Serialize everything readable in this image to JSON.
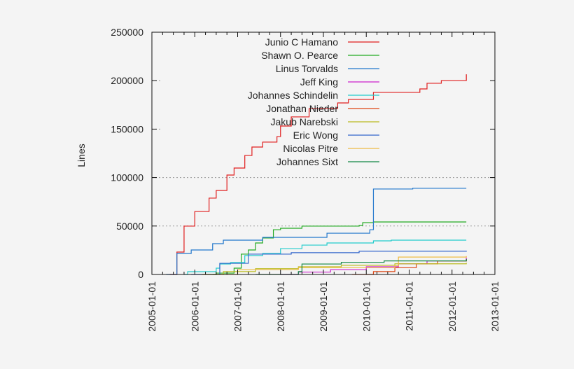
{
  "chart_data": {
    "type": "line",
    "title": "",
    "xlabel": "",
    "ylabel": "Lines",
    "xlim": [
      "2005-01-01",
      "2013-01-01"
    ],
    "ylim": [
      0,
      250000
    ],
    "x_ticks": [
      "2005-01-01",
      "2006-01-01",
      "2007-01-01",
      "2008-01-01",
      "2009-01-01",
      "2010-01-01",
      "2011-01-01",
      "2012-01-01",
      "2013-01-01"
    ],
    "y_ticks": [
      0,
      50000,
      100000,
      150000,
      200000,
      250000
    ],
    "y_tick_labels": [
      "0",
      "50000",
      "100000",
      "150000",
      "200000",
      "250000"
    ],
    "grid": "horizontal dotted",
    "legend_placement": "top-center",
    "line_style": "step",
    "series": [
      {
        "name": "Junio C Hamano",
        "color": "#e01e1e",
        "points": [
          [
            "2005-06",
            0
          ],
          [
            "2005-08",
            23100
          ],
          [
            "2005-10",
            49900
          ],
          [
            "2006-01",
            65000
          ],
          [
            "2006-05",
            78800
          ],
          [
            "2006-07",
            86700
          ],
          [
            "2006-10",
            102600
          ],
          [
            "2006-12",
            109800
          ],
          [
            "2007-03",
            122800
          ],
          [
            "2007-05",
            131500
          ],
          [
            "2007-08",
            136600
          ],
          [
            "2007-12",
            142300
          ],
          [
            "2008-01",
            153200
          ],
          [
            "2008-04",
            162600
          ],
          [
            "2008-09",
            171200
          ],
          [
            "2009-05",
            177000
          ],
          [
            "2009-08",
            180600
          ],
          [
            "2010-03",
            187900
          ],
          [
            "2011-04",
            191500
          ],
          [
            "2011-06",
            197300
          ],
          [
            "2011-10",
            200100
          ],
          [
            "2012-05",
            206600
          ]
        ]
      },
      {
        "name": "Shawn O. Pearce",
        "color": "#22aa22",
        "points": [
          [
            "2006-06",
            0
          ],
          [
            "2006-07",
            1400
          ],
          [
            "2006-12",
            6500
          ],
          [
            "2007-02",
            21000
          ],
          [
            "2007-04",
            25300
          ],
          [
            "2007-06",
            32500
          ],
          [
            "2007-08",
            37600
          ],
          [
            "2007-11",
            46200
          ],
          [
            "2008-01",
            47700
          ],
          [
            "2008-07",
            49900
          ],
          [
            "2009-11",
            50600
          ],
          [
            "2009-12",
            53500
          ],
          [
            "2010-03",
            54200
          ],
          [
            "2012-05",
            54200
          ]
        ]
      },
      {
        "name": "Linus Torvalds",
        "color": "#2277cc",
        "points": [
          [
            "2005-05",
            0
          ],
          [
            "2005-08",
            21700
          ],
          [
            "2005-12",
            25300
          ],
          [
            "2006-06",
            31800
          ],
          [
            "2006-09",
            35400
          ],
          [
            "2007-08",
            38300
          ],
          [
            "2009-02",
            42600
          ],
          [
            "2010-02",
            46200
          ],
          [
            "2010-03",
            88200
          ],
          [
            "2011-02",
            88900
          ],
          [
            "2012-05",
            88900
          ]
        ]
      },
      {
        "name": "Jeff King",
        "color": "#cc22cc",
        "points": [
          [
            "2008-01",
            0
          ],
          [
            "2008-06",
            2500
          ],
          [
            "2009-03",
            5000
          ],
          [
            "2010-01",
            8000
          ],
          [
            "2010-10",
            11000
          ],
          [
            "2011-06",
            14000
          ],
          [
            "2012-05",
            17300
          ]
        ]
      },
      {
        "name": "Johannes Schindelin",
        "color": "#22cccc",
        "points": [
          [
            "2005-10",
            0
          ],
          [
            "2005-11",
            2900
          ],
          [
            "2006-07",
            6500
          ],
          [
            "2006-08",
            10800
          ],
          [
            "2006-11",
            12300
          ],
          [
            "2007-03",
            19500
          ],
          [
            "2007-08",
            21700
          ],
          [
            "2008-01",
            26700
          ],
          [
            "2008-07",
            30300
          ],
          [
            "2009-02",
            32500
          ],
          [
            "2010-03",
            34700
          ],
          [
            "2010-08",
            35400
          ],
          [
            "2012-05",
            35400
          ]
        ]
      },
      {
        "name": "Jonathan Nieder",
        "color": "#dd4411",
        "points": [
          [
            "2009-09",
            0
          ],
          [
            "2010-03",
            3000
          ],
          [
            "2010-09",
            7000
          ],
          [
            "2011-03",
            11000
          ],
          [
            "2011-09",
            14000
          ],
          [
            "2012-05",
            15900
          ]
        ]
      },
      {
        "name": "Jakub Narebski",
        "color": "#bbbb22",
        "points": [
          [
            "2006-03",
            0
          ],
          [
            "2006-09",
            3000
          ],
          [
            "2007-06",
            6000
          ],
          [
            "2008-06",
            8000
          ],
          [
            "2009-06",
            9500
          ],
          [
            "2010-09",
            11000
          ],
          [
            "2012-05",
            12000
          ]
        ]
      },
      {
        "name": "Eric Wong",
        "color": "#3366cc",
        "points": [
          [
            "2005-12",
            0
          ],
          [
            "2006-08",
            11500
          ],
          [
            "2007-03",
            11500
          ],
          [
            "2007-04",
            21000
          ],
          [
            "2008-04",
            22500
          ],
          [
            "2009-11",
            24000
          ],
          [
            "2012-05",
            24600
          ]
        ]
      },
      {
        "name": "Nicolas Pitre",
        "color": "#eebb44",
        "points": [
          [
            "2006-03",
            0
          ],
          [
            "2007-01",
            5000
          ],
          [
            "2008-06",
            7000
          ],
          [
            "2010-09",
            9000
          ],
          [
            "2010-10",
            18000
          ],
          [
            "2012-05",
            19000
          ]
        ]
      },
      {
        "name": "Johannes Sixt",
        "color": "#118844",
        "points": [
          [
            "2007-06",
            0
          ],
          [
            "2008-06",
            3000
          ],
          [
            "2008-07",
            10800
          ],
          [
            "2009-06",
            12500
          ],
          [
            "2010-06",
            14000
          ],
          [
            "2012-05",
            15900
          ]
        ]
      }
    ]
  }
}
